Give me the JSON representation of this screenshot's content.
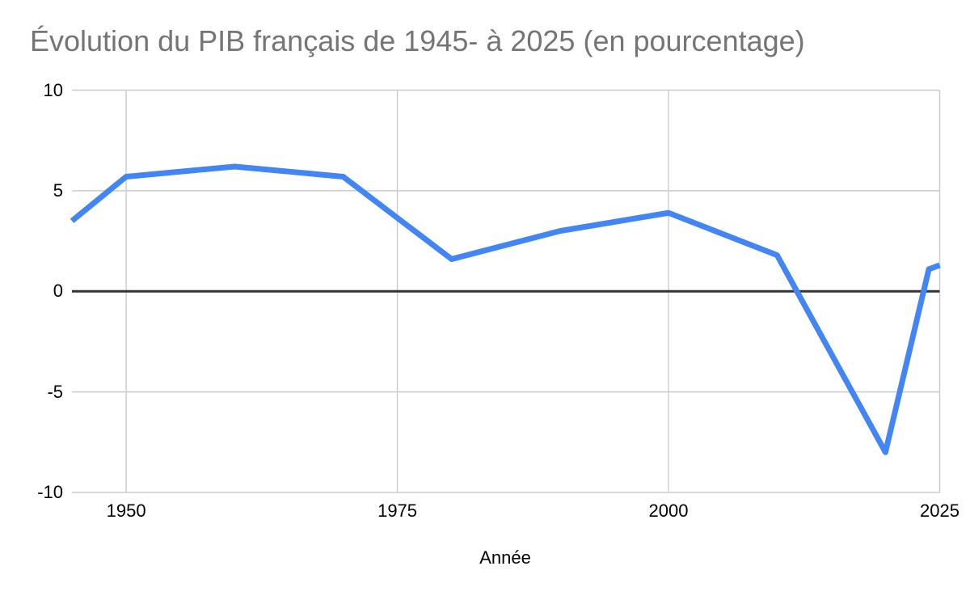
{
  "chart_data": {
    "type": "line",
    "title": "Évolution du PIB français de 1945- à 2025 (en pourcentage)",
    "xlabel": "Année",
    "ylabel": "",
    "x": [
      1945,
      1950,
      1960,
      1970,
      1980,
      1990,
      2000,
      2010,
      2020,
      2024,
      2025
    ],
    "values": [
      3.5,
      5.7,
      6.2,
      5.7,
      1.6,
      3.0,
      3.9,
      1.8,
      -8.0,
      1.1,
      1.3
    ],
    "xlim": [
      1945,
      2025
    ],
    "ylim": [
      -10,
      10
    ],
    "x_ticks": [
      1950,
      1975,
      2000,
      2025
    ],
    "y_ticks": [
      10,
      5,
      0,
      -5,
      -10
    ],
    "grid": true,
    "legend_position": "none",
    "colors": {
      "line": "#4285f4",
      "gridline": "#cccccc",
      "zero_axis": "#333333",
      "title_text": "#757575",
      "tick_text": "#000000",
      "background": "#ffffff"
    }
  }
}
